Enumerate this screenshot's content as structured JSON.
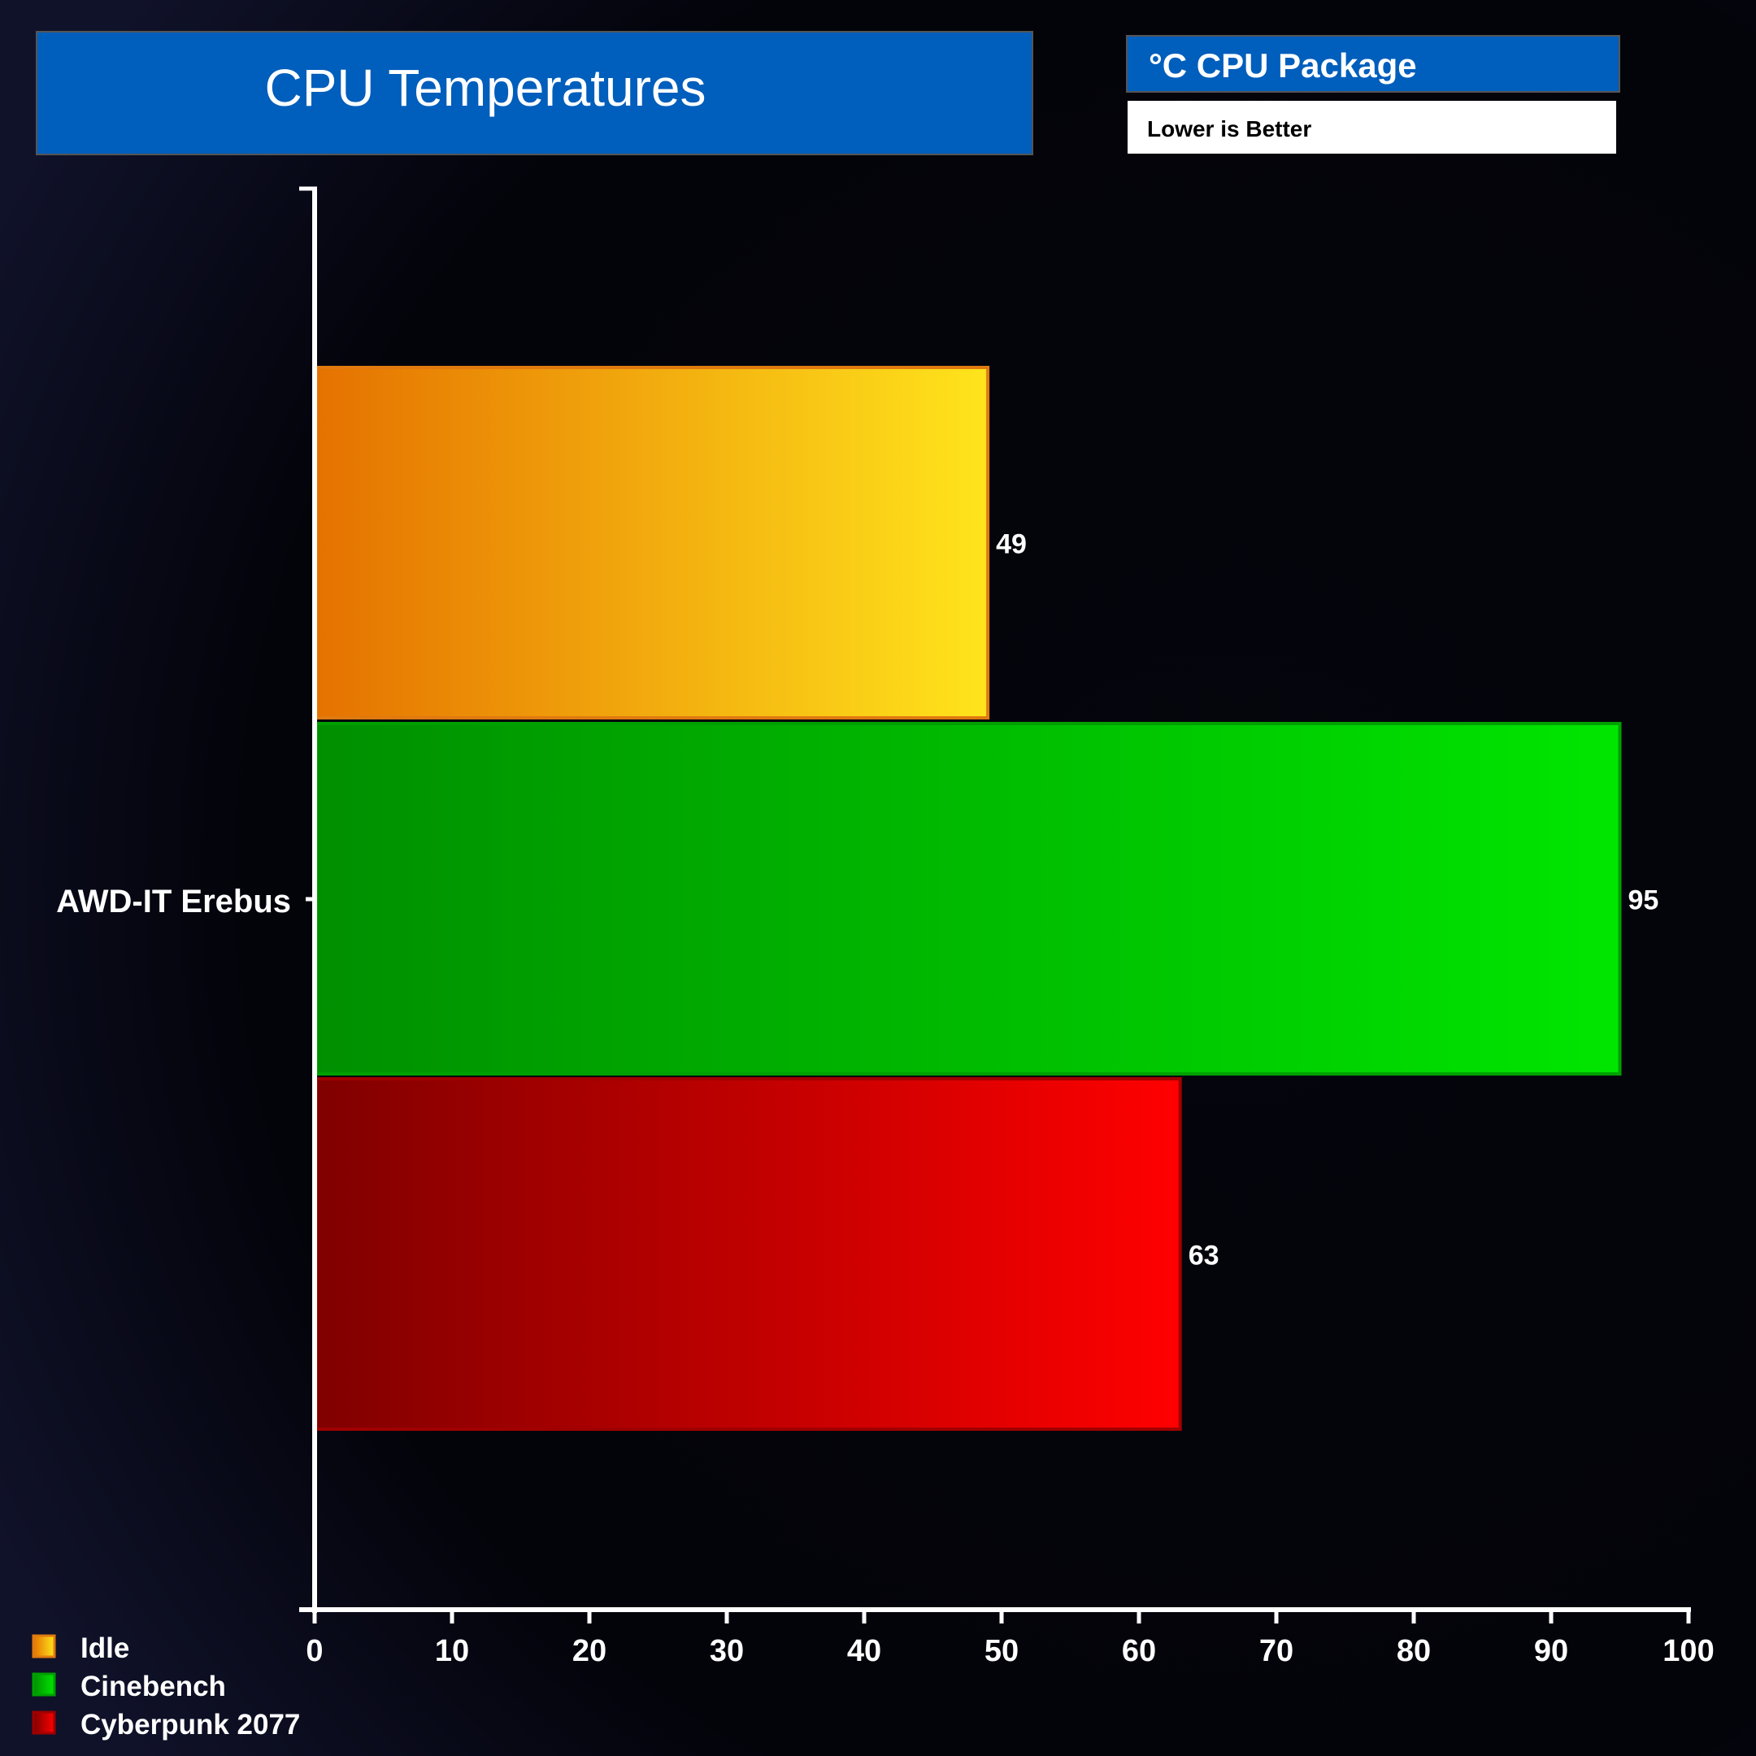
{
  "chart_data": {
    "type": "bar",
    "orientation": "horizontal",
    "title": "CPU Temperatures",
    "unit_label": "°C CPU Package",
    "subtitle": "Lower is Better",
    "categories": [
      "AWD-IT Erebus"
    ],
    "series": [
      {
        "name": "Idle",
        "values": [
          49
        ],
        "color_start": "#e57200",
        "color_end": "#ffe41c",
        "border": "#e07a10"
      },
      {
        "name": "Cinebench",
        "values": [
          95
        ],
        "color_start": "#008f00",
        "color_end": "#00e600",
        "border": "#00a000"
      },
      {
        "name": "Cyberpunk 2077",
        "values": [
          63
        ],
        "color_start": "#800000",
        "color_end": "#ff0000",
        "border": "#a00000"
      }
    ],
    "xlim": [
      0,
      100
    ],
    "xticks": [
      "0",
      "10",
      "20",
      "30",
      "40",
      "50",
      "60",
      "70",
      "80",
      "90",
      "100"
    ],
    "grid": false,
    "legend_position": "bottom-left",
    "title_bg": "#005ebc"
  }
}
